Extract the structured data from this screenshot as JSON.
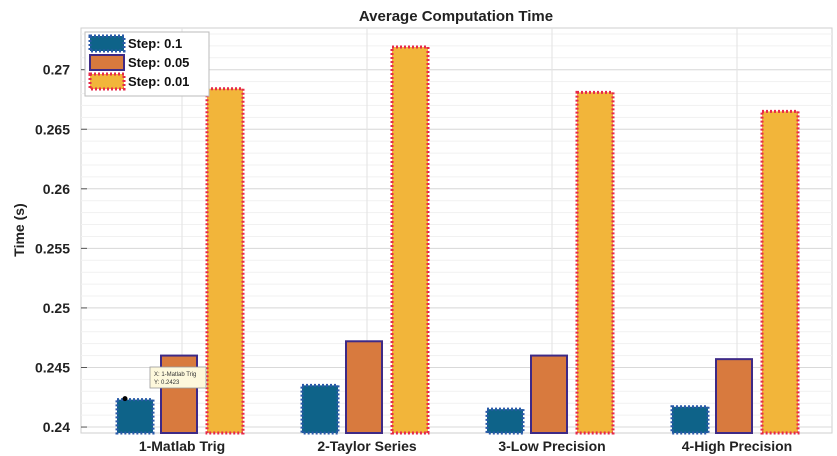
{
  "chart_data": {
    "type": "bar",
    "title": "Average Computation Time",
    "xlabel": "",
    "ylabel": "Time (s)",
    "categories": [
      "1-Matlab Trig",
      "2-Taylor Series",
      "3-Low Precision",
      "4-High Precision"
    ],
    "ylim": [
      0.2395,
      0.2735
    ],
    "yticks": [
      0.24,
      0.245,
      0.25,
      0.255,
      0.26,
      0.265,
      0.27
    ],
    "ytick_labels": [
      "0.24",
      "0.245",
      "0.25",
      "0.255",
      "0.26",
      "0.265",
      "0.27"
    ],
    "grid": true,
    "legend_position": "top-left",
    "series": [
      {
        "name": "Step: 0.1",
        "values": [
          0.2423,
          0.2435,
          0.2415,
          0.2417
        ],
        "color": "#0e6389",
        "edge": "#2a5aa8",
        "edge_style": "dotted"
      },
      {
        "name": "Step: 0.05",
        "values": [
          0.246,
          0.2472,
          0.246,
          0.2457
        ],
        "color": "#d87a3e",
        "edge": "#3e2a86",
        "edge_style": "solid"
      },
      {
        "name": "Step: 0.01",
        "values": [
          0.2684,
          0.2719,
          0.2681,
          0.2665
        ],
        "color": "#f2b53a",
        "edge": "#e6294a",
        "edge_style": "dotted"
      }
    ],
    "datatip": {
      "x_text": "X: 1-Matlab Trig",
      "y_text": "Y: 0.2423"
    }
  }
}
